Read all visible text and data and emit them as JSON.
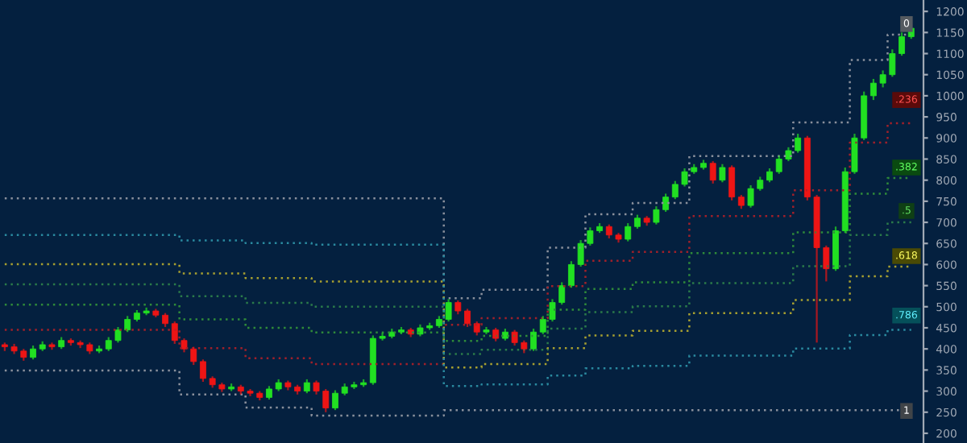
{
  "chart_data": {
    "type": "candlestick",
    "categories": [
      null,
      null,
      null,
      null,
      null,
      null,
      null,
      null,
      null,
      null,
      null,
      null,
      null,
      null,
      null,
      null,
      null,
      null,
      null,
      null,
      null,
      null,
      null,
      null,
      null,
      null,
      null,
      null,
      null,
      null,
      null,
      null,
      null,
      null,
      null,
      null,
      null,
      null,
      null,
      null,
      null,
      null,
      null,
      null,
      null,
      null,
      null,
      null,
      null,
      null,
      null,
      null,
      null,
      null,
      null,
      null,
      null,
      null,
      null,
      null,
      null,
      null,
      null,
      null,
      null,
      null,
      null,
      null,
      null,
      null,
      null,
      null,
      null,
      null,
      null,
      null,
      null,
      null,
      null,
      null,
      null,
      null,
      null,
      null,
      null,
      null,
      null,
      null,
      null,
      null,
      null,
      null,
      null,
      null,
      null,
      null,
      null
    ],
    "ohlc": [
      [
        410,
        415,
        395,
        405
      ],
      [
        405,
        412,
        388,
        395
      ],
      [
        395,
        400,
        372,
        380
      ],
      [
        380,
        408,
        375,
        400
      ],
      [
        400,
        418,
        395,
        410
      ],
      [
        410,
        415,
        398,
        405
      ],
      [
        405,
        428,
        400,
        420
      ],
      [
        420,
        425,
        408,
        415
      ],
      [
        415,
        420,
        402,
        410
      ],
      [
        410,
        415,
        388,
        395
      ],
      [
        395,
        408,
        390,
        400
      ],
      [
        400,
        428,
        395,
        420
      ],
      [
        420,
        452,
        415,
        445
      ],
      [
        445,
        478,
        440,
        470
      ],
      [
        470,
        492,
        465,
        485
      ],
      [
        485,
        498,
        480,
        490
      ],
      [
        490,
        495,
        475,
        480
      ],
      [
        480,
        485,
        452,
        460
      ],
      [
        460,
        465,
        412,
        420
      ],
      [
        420,
        425,
        392,
        400
      ],
      [
        400,
        405,
        362,
        370
      ],
      [
        370,
        375,
        322,
        330
      ],
      [
        330,
        335,
        308,
        315
      ],
      [
        315,
        320,
        298,
        305
      ],
      [
        305,
        318,
        300,
        310
      ],
      [
        310,
        315,
        292,
        300
      ],
      [
        300,
        305,
        288,
        295
      ],
      [
        295,
        300,
        278,
        285
      ],
      [
        285,
        312,
        280,
        305
      ],
      [
        305,
        328,
        300,
        320
      ],
      [
        320,
        325,
        302,
        310
      ],
      [
        310,
        315,
        292,
        300
      ],
      [
        300,
        328,
        295,
        320
      ],
      [
        320,
        325,
        292,
        300
      ],
      [
        300,
        305,
        250,
        260
      ],
      [
        260,
        302,
        255,
        295
      ],
      [
        295,
        318,
        290,
        310
      ],
      [
        310,
        322,
        305,
        315
      ],
      [
        315,
        328,
        310,
        320
      ],
      [
        320,
        432,
        315,
        425
      ],
      [
        425,
        438,
        420,
        430
      ],
      [
        430,
        448,
        425,
        440
      ],
      [
        440,
        452,
        435,
        445
      ],
      [
        445,
        450,
        428,
        435
      ],
      [
        435,
        458,
        430,
        450
      ],
      [
        450,
        462,
        445,
        455
      ],
      [
        455,
        478,
        450,
        470
      ],
      [
        470,
        518,
        465,
        510
      ],
      [
        510,
        515,
        482,
        490
      ],
      [
        490,
        495,
        452,
        460
      ],
      [
        460,
        465,
        432,
        440
      ],
      [
        440,
        452,
        435,
        445
      ],
      [
        445,
        450,
        418,
        425
      ],
      [
        425,
        448,
        420,
        440
      ],
      [
        440,
        445,
        408,
        415
      ],
      [
        415,
        420,
        390,
        400
      ],
      [
        400,
        448,
        395,
        440
      ],
      [
        440,
        478,
        435,
        470
      ],
      [
        470,
        518,
        465,
        510
      ],
      [
        510,
        558,
        505,
        550
      ],
      [
        550,
        608,
        545,
        600
      ],
      [
        600,
        658,
        595,
        650
      ],
      [
        650,
        688,
        645,
        680
      ],
      [
        680,
        698,
        675,
        690
      ],
      [
        690,
        695,
        662,
        670
      ],
      [
        670,
        675,
        652,
        660
      ],
      [
        660,
        698,
        655,
        690
      ],
      [
        690,
        718,
        685,
        710
      ],
      [
        710,
        715,
        692,
        700
      ],
      [
        700,
        738,
        695,
        730
      ],
      [
        730,
        768,
        725,
        760
      ],
      [
        760,
        798,
        755,
        790
      ],
      [
        790,
        828,
        785,
        820
      ],
      [
        820,
        838,
        815,
        830
      ],
      [
        830,
        848,
        825,
        840
      ],
      [
        840,
        845,
        792,
        800
      ],
      [
        800,
        838,
        795,
        830
      ],
      [
        830,
        835,
        752,
        760
      ],
      [
        760,
        765,
        732,
        740
      ],
      [
        740,
        788,
        735,
        780
      ],
      [
        780,
        808,
        775,
        800
      ],
      [
        800,
        828,
        795,
        820
      ],
      [
        820,
        858,
        815,
        850
      ],
      [
        850,
        878,
        845,
        870
      ],
      [
        870,
        910,
        865,
        900
      ],
      [
        900,
        905,
        752,
        760
      ],
      [
        760,
        765,
        415,
        640
      ],
      [
        640,
        645,
        560,
        590
      ],
      [
        590,
        690,
        585,
        680
      ],
      [
        680,
        830,
        675,
        820
      ],
      [
        820,
        910,
        815,
        900
      ],
      [
        900,
        1010,
        895,
        1000
      ],
      [
        1000,
        1040,
        990,
        1030
      ],
      [
        1030,
        1060,
        1020,
        1050
      ],
      [
        1050,
        1110,
        1045,
        1100
      ],
      [
        1100,
        1150,
        1095,
        1140
      ],
      [
        1140,
        1170,
        1135,
        1160
      ]
    ],
    "series": [
      {
        "type": "step",
        "color": "#8a909c",
        "values": [
          757,
          757,
          757,
          757,
          757,
          757,
          757,
          757,
          757,
          757,
          757,
          757,
          757,
          757,
          757,
          757,
          757,
          757,
          757,
          757,
          757,
          757,
          757,
          757,
          757,
          757,
          757,
          757,
          757,
          757,
          757,
          757,
          757,
          757,
          757,
          757,
          757,
          757,
          757,
          757,
          757,
          757,
          757,
          757,
          757,
          757,
          757,
          520,
          520,
          520,
          520,
          540,
          540,
          540,
          540,
          540,
          540,
          540,
          640,
          640,
          640,
          640,
          719,
          719,
          719,
          719,
          719,
          746,
          746,
          746,
          746,
          746,
          746,
          857,
          857,
          857,
          857,
          857,
          857,
          857,
          857,
          857,
          857,
          857,
          937,
          937,
          937,
          937,
          937,
          937,
          1085,
          1085,
          1085,
          1085,
          1145,
          1145,
          1145
        ]
      },
      {
        "type": "step",
        "color": "#a0202a",
        "values": [
          445,
          445,
          445,
          445,
          445,
          445,
          445,
          445,
          445,
          445,
          445,
          445,
          445,
          445,
          445,
          445,
          445,
          445,
          445,
          402,
          402,
          402,
          402,
          402,
          402,
          402,
          378,
          378,
          378,
          378,
          378,
          378,
          378,
          364,
          364,
          364,
          364,
          364,
          364,
          364,
          364,
          364,
          364,
          364,
          364,
          364,
          364,
          457,
          457,
          457,
          457,
          473,
          473,
          473,
          473,
          473,
          473,
          473,
          549,
          549,
          549,
          549,
          609,
          609,
          609,
          609,
          609,
          630,
          630,
          630,
          630,
          630,
          630,
          715,
          715,
          715,
          715,
          715,
          715,
          715,
          715,
          715,
          715,
          715,
          776,
          776,
          776,
          776,
          776,
          776,
          889,
          889,
          889,
          889,
          935,
          935,
          935
        ]
      },
      {
        "type": "step",
        "color": "#2f8a3a",
        "values": [
          505,
          505,
          505,
          505,
          505,
          505,
          505,
          505,
          505,
          505,
          505,
          505,
          505,
          505,
          505,
          505,
          505,
          505,
          505,
          470,
          470,
          470,
          470,
          470,
          470,
          470,
          450,
          450,
          450,
          450,
          450,
          450,
          450,
          439,
          439,
          439,
          439,
          439,
          439,
          439,
          439,
          439,
          439,
          439,
          439,
          439,
          439,
          419,
          419,
          419,
          419,
          431,
          431,
          431,
          431,
          431,
          431,
          431,
          493,
          493,
          493,
          493,
          542,
          542,
          542,
          542,
          542,
          558,
          558,
          558,
          558,
          558,
          558,
          627,
          627,
          627,
          627,
          627,
          627,
          627,
          627,
          627,
          627,
          627,
          676,
          676,
          676,
          676,
          676,
          676,
          768,
          768,
          768,
          768,
          805,
          805,
          805
        ]
      },
      {
        "type": "step",
        "color": "#2a7a4a",
        "values": [
          553,
          553,
          553,
          553,
          553,
          553,
          553,
          553,
          553,
          553,
          553,
          553,
          553,
          553,
          553,
          553,
          553,
          553,
          553,
          525,
          525,
          525,
          525,
          525,
          525,
          525,
          509,
          509,
          509,
          509,
          509,
          509,
          509,
          500,
          500,
          500,
          500,
          500,
          500,
          500,
          500,
          500,
          500,
          500,
          500,
          500,
          500,
          388,
          388,
          388,
          388,
          398,
          398,
          398,
          398,
          398,
          398,
          398,
          448,
          448,
          448,
          448,
          487,
          487,
          487,
          487,
          487,
          501,
          501,
          501,
          501,
          501,
          501,
          556,
          556,
          556,
          556,
          556,
          556,
          556,
          556,
          556,
          556,
          556,
          596,
          596,
          596,
          596,
          596,
          596,
          670,
          670,
          670,
          670,
          700,
          700,
          700
        ]
      },
      {
        "type": "step",
        "color": "#a8a030",
        "values": [
          601,
          601,
          601,
          601,
          601,
          601,
          601,
          601,
          601,
          601,
          601,
          601,
          601,
          601,
          601,
          601,
          601,
          601,
          601,
          579,
          579,
          579,
          579,
          579,
          579,
          579,
          568,
          568,
          568,
          568,
          568,
          568,
          568,
          560,
          560,
          560,
          560,
          560,
          560,
          560,
          560,
          560,
          560,
          560,
          560,
          560,
          560,
          356,
          356,
          356,
          356,
          364,
          364,
          364,
          364,
          364,
          364,
          364,
          402,
          402,
          402,
          402,
          432,
          432,
          432,
          432,
          432,
          443,
          443,
          443,
          443,
          443,
          443,
          485,
          485,
          485,
          485,
          485,
          485,
          485,
          485,
          485,
          485,
          485,
          516,
          516,
          516,
          516,
          516,
          516,
          572,
          572,
          572,
          572,
          595,
          595,
          595
        ]
      },
      {
        "type": "step",
        "color": "#2a8aa0",
        "values": [
          670,
          670,
          670,
          670,
          670,
          670,
          670,
          670,
          670,
          670,
          670,
          670,
          670,
          670,
          670,
          670,
          670,
          670,
          670,
          657,
          657,
          657,
          657,
          657,
          657,
          657,
          651,
          651,
          651,
          651,
          651,
          651,
          651,
          647,
          647,
          647,
          647,
          647,
          647,
          647,
          647,
          647,
          647,
          647,
          647,
          647,
          647,
          312,
          312,
          312,
          312,
          316,
          316,
          316,
          316,
          316,
          316,
          316,
          337,
          337,
          337,
          337,
          354,
          354,
          354,
          354,
          354,
          360,
          360,
          360,
          360,
          360,
          360,
          384,
          384,
          384,
          384,
          384,
          384,
          384,
          384,
          384,
          384,
          384,
          401,
          401,
          401,
          401,
          401,
          401,
          433,
          433,
          433,
          433,
          445,
          445,
          445
        ]
      },
      {
        "type": "step",
        "color": "#8a909c",
        "values": [
          349,
          349,
          349,
          349,
          349,
          349,
          349,
          349,
          349,
          349,
          349,
          349,
          349,
          349,
          349,
          349,
          349,
          349,
          349,
          292,
          292,
          292,
          292,
          292,
          292,
          292,
          261,
          261,
          261,
          261,
          261,
          261,
          261,
          242,
          242,
          242,
          242,
          242,
          242,
          242,
          242,
          242,
          242,
          242,
          242,
          242,
          242,
          255,
          255,
          255,
          255,
          255,
          255,
          255,
          255,
          255,
          255,
          255,
          255,
          255,
          255,
          255,
          255,
          255,
          255,
          255,
          255,
          255,
          255,
          255,
          255,
          255,
          255,
          255,
          255,
          255,
          255,
          255,
          255,
          255,
          255,
          255,
          255,
          255,
          255,
          255,
          255,
          255,
          255,
          255,
          255,
          255,
          255,
          255,
          255,
          255,
          255
        ]
      }
    ],
    "line_style": "dotted",
    "ylim": [
      177,
      1227
    ],
    "yticks": [
      200,
      250,
      300,
      350,
      400,
      450,
      500,
      550,
      600,
      650,
      700,
      750,
      800,
      850,
      900,
      950,
      1000,
      1050,
      1100,
      1150,
      1200
    ],
    "tick_labels": "y",
    "annotations": [
      {
        "text": "0",
        "y": 1170
      },
      {
        "text": ".236",
        "y": 990
      },
      {
        "text": ".382",
        "y": 830
      },
      {
        "text": ".5",
        "y": 727
      },
      {
        "text": ".618",
        "y": 620
      },
      {
        "text": ".786",
        "y": 479
      },
      {
        "text": "1",
        "y": 253
      }
    ]
  }
}
